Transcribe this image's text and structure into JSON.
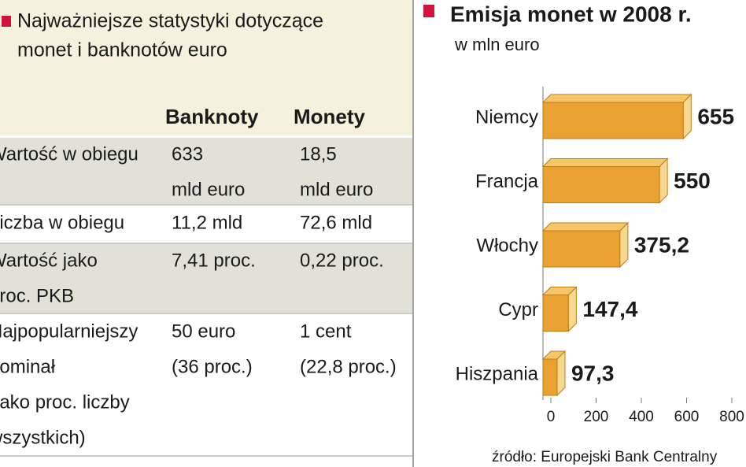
{
  "table": {
    "title": [
      "Najważniejsze statystyki dotyczące",
      "monet i banknotów euro"
    ],
    "columns": [
      "Banknoty",
      "Monety"
    ],
    "rows": [
      {
        "label": [
          "Wartość w obiegu"
        ],
        "cells": [
          [
            "633",
            "mld euro"
          ],
          [
            "18,5",
            "mld euro"
          ]
        ]
      },
      {
        "label": [
          "Liczba w obiegu"
        ],
        "cells": [
          [
            "11,2 mld"
          ],
          [
            "72,6 mld"
          ]
        ]
      },
      {
        "label": [
          "Wartość jako",
          "proc. PKB"
        ],
        "cells": [
          [
            "7,41 proc."
          ],
          [
            "0,22 proc."
          ]
        ]
      },
      {
        "label": [
          "Najpopularniejszy",
          "nominał",
          "(jako proc. liczby",
          "wszystkich)"
        ],
        "cells": [
          [
            "50 euro",
            "(36 proc.)"
          ],
          [
            "1 cent",
            "(22,8 proc.)"
          ]
        ]
      }
    ]
  },
  "chart_data": {
    "type": "bar",
    "orientation": "horizontal",
    "title": "Emisja monet w 2008 r.",
    "subtitle": "w mln euro",
    "categories": [
      "Niemcy",
      "Francja",
      "Włochy",
      "Cypr",
      "Hiszpania"
    ],
    "values": [
      655,
      550,
      375.2,
      147.4,
      97.3
    ],
    "value_labels": [
      "655",
      "550",
      "375,2",
      "147,4",
      "97,3"
    ],
    "color": "#e9a232",
    "xlim": [
      0,
      800
    ],
    "xticks": [
      0,
      200,
      400,
      600,
      800
    ],
    "source": "źródło: Europejski Bank Centralny"
  }
}
